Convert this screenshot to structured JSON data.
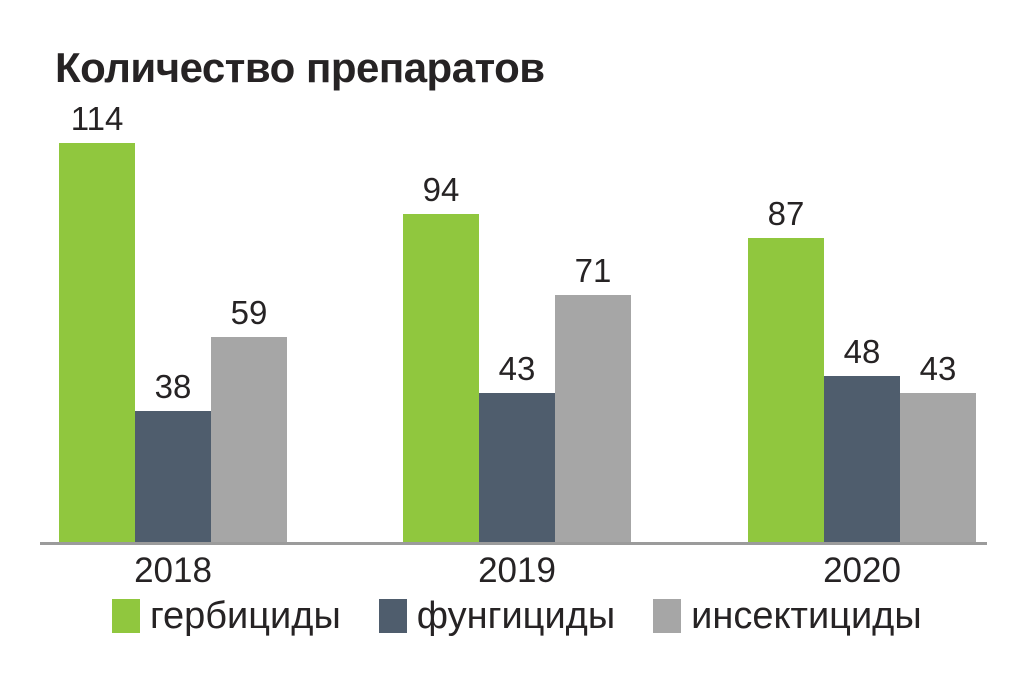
{
  "title": "Количество препаратов",
  "chart_data": {
    "type": "bar",
    "title": "Количество препаратов",
    "categories": [
      "2018",
      "2019",
      "2020"
    ],
    "series": [
      {
        "name": "гербициды",
        "color": "#90C73E",
        "values": [
          114,
          94,
          87
        ]
      },
      {
        "name": "фунгициды",
        "color": "#4F5D6D",
        "values": [
          38,
          43,
          48
        ]
      },
      {
        "name": "инсектициды",
        "color": "#A6A6A6",
        "values": [
          59,
          71,
          43
        ]
      }
    ],
    "ylim": [
      0,
      120
    ],
    "grid": false,
    "value_labels_shown": true,
    "legend_position": "bottom",
    "axis_line_color": "#9B9B9B",
    "text_color": "#262324",
    "background_color": "#FFFFFF"
  }
}
